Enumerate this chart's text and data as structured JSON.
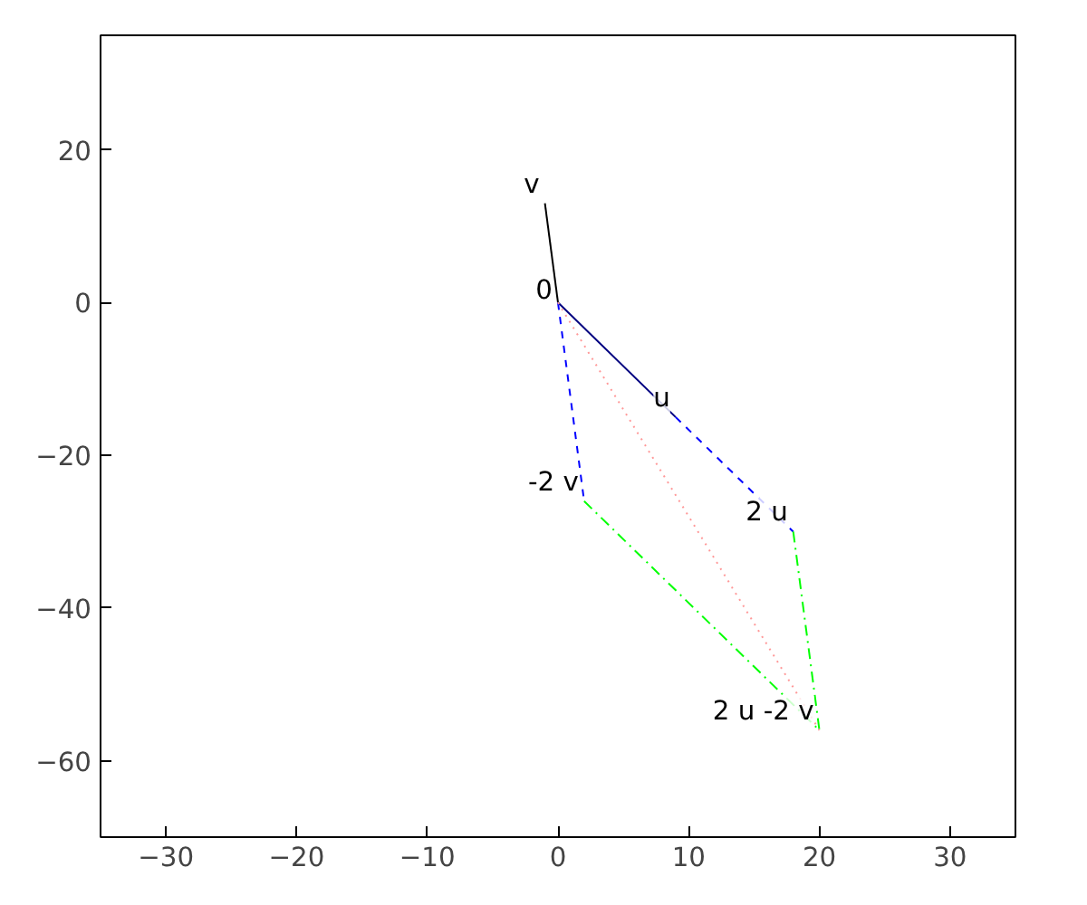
{
  "chart_data": {
    "type": "line",
    "xlim": [
      -35,
      35
    ],
    "ylim": [
      -70,
      35
    ],
    "xticks": [
      -30,
      -20,
      -10,
      0,
      10,
      20,
      30
    ],
    "yticks": [
      -60,
      -40,
      -20,
      0,
      20
    ],
    "grid": false,
    "series": [
      {
        "color": "#000000",
        "line_style": "solid",
        "x": [
          0,
          -1
        ],
        "values": [
          0,
          13
        ]
      },
      {
        "color": "#000080",
        "line_style": "solid",
        "x": [
          0,
          9
        ],
        "values": [
          0,
          -15
        ]
      },
      {
        "color": "#0000ff",
        "line_style": "dashed",
        "x": [
          0,
          2,
          null,
          9,
          18
        ],
        "values": [
          0,
          -26,
          null,
          -15,
          -30
        ]
      },
      {
        "color": "#00ff00",
        "line_style": "dashdot",
        "x": [
          2,
          20,
          18
        ],
        "values": [
          -26,
          -56,
          -30
        ]
      },
      {
        "color": "#ff9999",
        "line_style": "dotted",
        "x": [
          0,
          20
        ],
        "values": [
          0,
          -56
        ]
      }
    ],
    "annotations": [
      {
        "text": "v",
        "x": -1,
        "y": 13
      },
      {
        "text": "0",
        "x": 0,
        "y": 0
      },
      {
        "text": "u",
        "x": 9,
        "y": -15
      },
      {
        "text": "-2 v",
        "x": 2,
        "y": -26
      },
      {
        "text": "2 u",
        "x": 18,
        "y": -30
      },
      {
        "text": "2 u -2 v",
        "x": 20,
        "y": -56
      }
    ]
  }
}
